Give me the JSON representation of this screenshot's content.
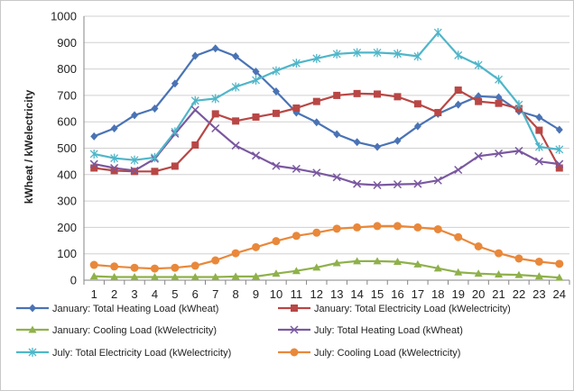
{
  "chart_data": {
    "type": "line",
    "title": "",
    "xlabel": "",
    "ylabel": "kWheat / kWelectricity",
    "categories": [
      "1",
      "2",
      "3",
      "4",
      "5",
      "6",
      "7",
      "8",
      "9",
      "10",
      "11",
      "12",
      "13",
      "14",
      "15",
      "16",
      "17",
      "18",
      "19",
      "20",
      "21",
      "22",
      "23",
      "24"
    ],
    "ylim": [
      0,
      1000
    ],
    "yticks": [
      0,
      100,
      200,
      300,
      400,
      500,
      600,
      700,
      800,
      900,
      1000
    ],
    "grid": true,
    "legend_position": "bottom",
    "series": [
      {
        "name": "January: Total Heating Load (kWheat)",
        "color": "#4a73b5",
        "marker": "diamond",
        "values": [
          545,
          575,
          625,
          650,
          745,
          850,
          878,
          848,
          790,
          715,
          635,
          598,
          553,
          523,
          505,
          528,
          583,
          630,
          665,
          697,
          693,
          640,
          617,
          570
        ]
      },
      {
        "name": "January: Total Electricity Load (kWelectricity)",
        "color": "#b84745",
        "marker": "square",
        "values": [
          425,
          415,
          412,
          412,
          432,
          512,
          630,
          603,
          618,
          632,
          652,
          677,
          700,
          707,
          705,
          695,
          668,
          635,
          720,
          677,
          670,
          650,
          568,
          425
        ]
      },
      {
        "name": "January: Cooling Load (kWelectricity)",
        "color": "#8fb14b",
        "marker": "triangle",
        "values": [
          15,
          12,
          12,
          12,
          12,
          12,
          12,
          14,
          14,
          25,
          35,
          48,
          65,
          72,
          72,
          70,
          60,
          45,
          30,
          25,
          22,
          20,
          15,
          10
        ]
      },
      {
        "name": "July: Total Heating Load (kWheat)",
        "color": "#7a58a0",
        "marker": "x",
        "values": [
          440,
          425,
          415,
          460,
          555,
          645,
          575,
          510,
          472,
          433,
          422,
          407,
          390,
          365,
          360,
          363,
          365,
          378,
          418,
          470,
          480,
          490,
          450,
          440
        ]
      },
      {
        "name": "July: Total Electricity Load (kWelectricity)",
        "color": "#4fb6c9",
        "marker": "star",
        "values": [
          478,
          462,
          455,
          465,
          562,
          680,
          688,
          732,
          758,
          793,
          822,
          840,
          857,
          862,
          862,
          858,
          848,
          938,
          852,
          815,
          760,
          665,
          505,
          495
        ]
      },
      {
        "name": "July: Cooling Load (kWelectricity)",
        "color": "#e9883a",
        "marker": "circle",
        "values": [
          58,
          52,
          47,
          44,
          47,
          55,
          75,
          102,
          125,
          148,
          168,
          180,
          195,
          200,
          205,
          205,
          200,
          193,
          163,
          128,
          102,
          82,
          70,
          62
        ]
      }
    ]
  }
}
